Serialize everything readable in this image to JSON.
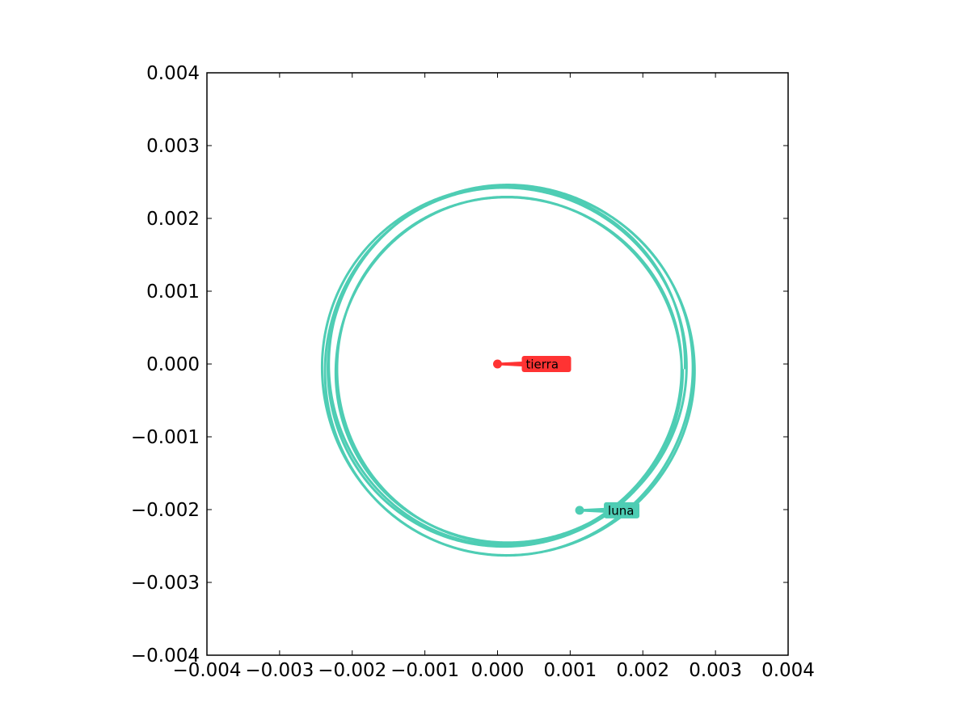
{
  "chart_data": {
    "type": "line",
    "title": "",
    "xlabel": "",
    "ylabel": "",
    "xlim": [
      -0.004,
      0.004
    ],
    "ylim": [
      -0.004,
      0.004
    ],
    "xticks": [
      "−0.004",
      "−0.003",
      "−0.002",
      "−0.001",
      "0.000",
      "0.001",
      "0.002",
      "0.003",
      "0.004"
    ],
    "yticks": [
      "0.004",
      "0.003",
      "0.002",
      "0.001",
      "0.000",
      "−0.001",
      "−0.002",
      "−0.003",
      "−0.004"
    ],
    "grid": false,
    "legend": "none",
    "orbit": {
      "center_x": 0.00012,
      "center_y": -7e-05,
      "radius_min": 0.00236,
      "radius_max": 0.00256,
      "loops": 6,
      "color": "#4ecdb4"
    },
    "points": [
      {
        "label": "tierra",
        "x": 0.0,
        "y": 0.0,
        "color": "#ff3333"
      },
      {
        "label": "luna",
        "x": 0.00113,
        "y": -0.00201,
        "color": "#4ecdb4"
      }
    ]
  }
}
